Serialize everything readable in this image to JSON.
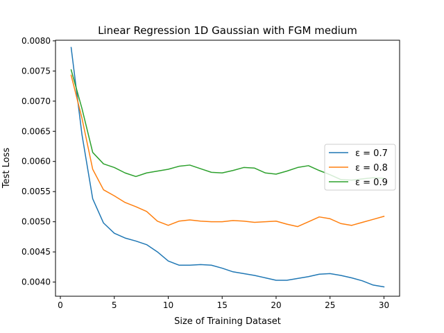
{
  "chart_data": {
    "type": "line",
    "title": "Linear Regression 1D Gaussian with FGM medium",
    "xlabel": "Size of Training Dataset",
    "ylabel": "Test Loss",
    "xlim": [
      -0.45,
      31.45
    ],
    "ylim": [
      0.003765,
      0.00801
    ],
    "xticks": [
      0,
      5,
      10,
      15,
      20,
      25,
      30
    ],
    "xtick_labels": [
      "0",
      "5",
      "10",
      "15",
      "20",
      "25",
      "30"
    ],
    "yticks": [
      0.004,
      0.0045,
      0.005,
      0.0055,
      0.006,
      0.0065,
      0.007,
      0.0075,
      0.008
    ],
    "ytick_labels": [
      "0.0040",
      "0.0045",
      "0.0050",
      "0.0055",
      "0.0060",
      "0.0065",
      "0.0070",
      "0.0075",
      "0.0080"
    ],
    "grid": false,
    "legend_position": "center-right",
    "x": [
      1,
      2,
      3,
      4,
      5,
      6,
      7,
      8,
      9,
      10,
      11,
      12,
      13,
      14,
      15,
      16,
      17,
      18,
      19,
      20,
      21,
      22,
      23,
      24,
      25,
      26,
      27,
      28,
      29,
      30
    ],
    "series": [
      {
        "name": "ε = 0.7",
        "color": "#1f77b4",
        "values": [
          0.00789,
          0.00645,
          0.00538,
          0.00498,
          0.00481,
          0.00473,
          0.00468,
          0.00462,
          0.0045,
          0.00435,
          0.00428,
          0.00428,
          0.00429,
          0.00428,
          0.00423,
          0.00417,
          0.00414,
          0.00411,
          0.00407,
          0.00403,
          0.00403,
          0.00406,
          0.00409,
          0.00413,
          0.00414,
          0.00411,
          0.00407,
          0.00402,
          0.00395,
          0.00392
        ]
      },
      {
        "name": "ε = 0.8",
        "color": "#ff7f0e",
        "values": [
          0.00743,
          0.00672,
          0.00587,
          0.00553,
          0.00543,
          0.00532,
          0.00525,
          0.00517,
          0.00501,
          0.00494,
          0.00501,
          0.00503,
          0.00501,
          0.005,
          0.005,
          0.00502,
          0.00501,
          0.00499,
          0.005,
          0.00501,
          0.00496,
          0.00492,
          0.005,
          0.00508,
          0.00505,
          0.00497,
          0.00494,
          0.00499,
          0.00504,
          0.00509
        ]
      },
      {
        "name": "ε = 0.9",
        "color": "#2ca02c",
        "values": [
          0.00752,
          0.00688,
          0.00615,
          0.00596,
          0.0059,
          0.00581,
          0.00575,
          0.00581,
          0.00584,
          0.00587,
          0.00592,
          0.00594,
          0.00588,
          0.00582,
          0.00581,
          0.00585,
          0.0059,
          0.00589,
          0.00581,
          0.00579,
          0.00584,
          0.0059,
          0.00593,
          0.00585,
          0.00578,
          0.0057,
          0.00569,
          0.00571,
          0.00573,
          0.00572
        ]
      }
    ]
  }
}
